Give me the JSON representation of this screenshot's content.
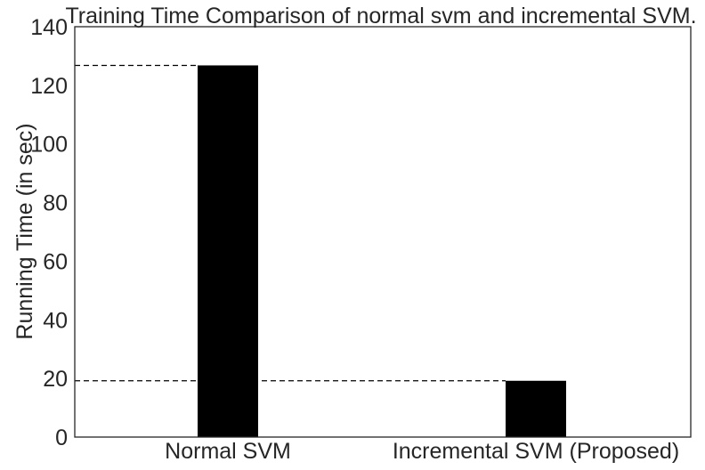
{
  "chart_data": {
    "type": "bar",
    "title": "Training Time Comparison of normal svm and incremental SVM.",
    "xlabel": "",
    "ylabel": "Running Time (in sec)",
    "categories": [
      "Normal SVM",
      "Incremental SVM (Proposed)"
    ],
    "values": [
      126.8,
      19.2
    ],
    "ylim": [
      0,
      140
    ],
    "yticks": [
      0,
      20,
      40,
      60,
      80,
      100,
      120,
      140
    ],
    "grid": false,
    "reference_lines": "dashed horizontal line at each bar top",
    "bar_color": "#000000"
  }
}
